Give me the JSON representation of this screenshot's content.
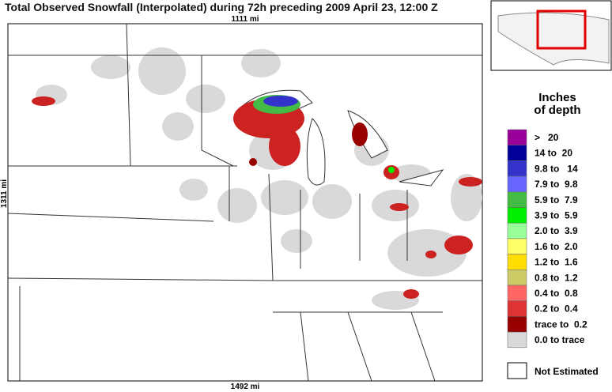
{
  "header": {
    "title": "Total Observed Snowfall (Interpolated) during 72h preceding 2009 April 23, 12:00 Z"
  },
  "map": {
    "top_scale": "1111 mi",
    "side_scale": "1311 mi",
    "bottom_scale": "1492 mi"
  },
  "legend": {
    "title_lines": [
      "Inches",
      "of depth"
    ],
    "items": [
      {
        "label": ">   20",
        "color": "#990099"
      },
      {
        "label": "14 to  20",
        "color": "#000099"
      },
      {
        "label": "9.8 to   14",
        "color": "#3333cc"
      },
      {
        "label": "7.9 to  9.8",
        "color": "#6666ff"
      },
      {
        "label": "5.9 to  7.9",
        "color": "#44bb44"
      },
      {
        "label": "3.9 to  5.9",
        "color": "#00ee00"
      },
      {
        "label": "2.0 to  3.9",
        "color": "#99ff99"
      },
      {
        "label": "1.6 to  2.0",
        "color": "#ffff66"
      },
      {
        "label": "1.2 to  1.6",
        "color": "#ffdd00"
      },
      {
        "label": "0.8 to  1.2",
        "color": "#cccc66"
      },
      {
        "label": "0.4 to  0.8",
        "color": "#ff6666"
      },
      {
        "label": "0.2 to  0.4",
        "color": "#dd3333"
      },
      {
        "label": "trace to  0.2",
        "color": "#990000"
      },
      {
        "label": "0.0 to trace",
        "color": "#d9d9d9"
      }
    ],
    "not_estimated": "Not Estimated"
  }
}
